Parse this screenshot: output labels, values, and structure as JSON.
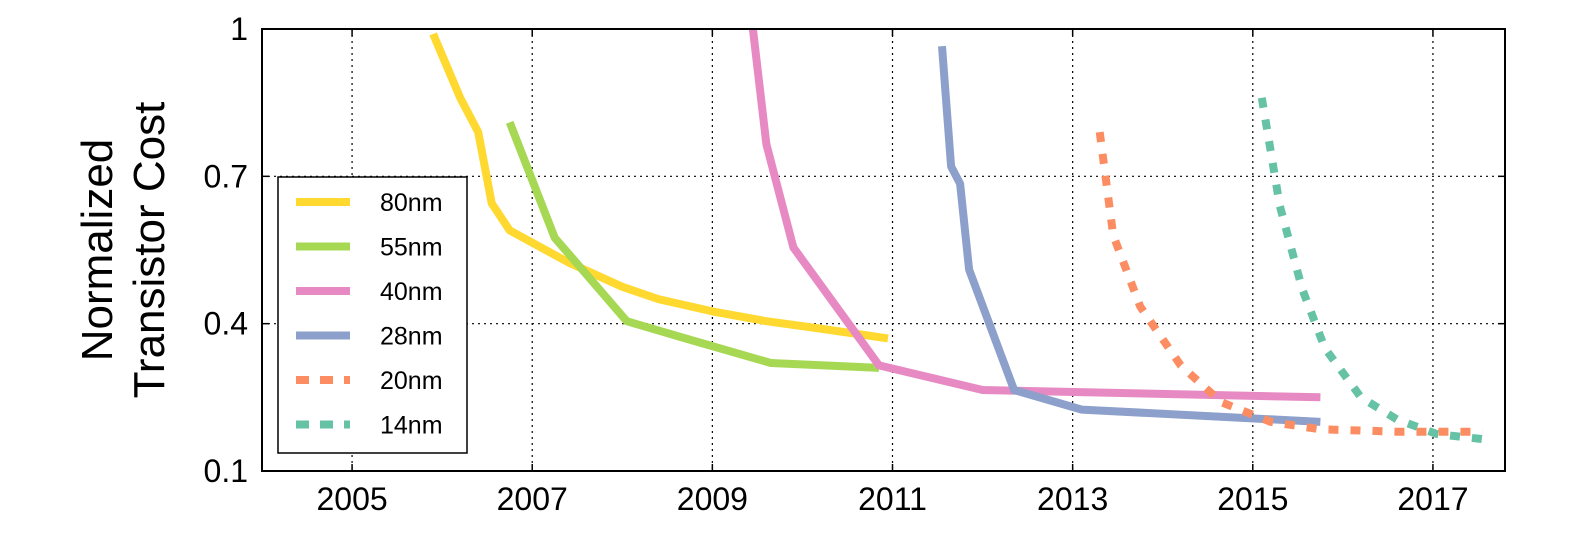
{
  "chart_data": {
    "type": "line",
    "title": "",
    "xlabel": "",
    "ylabel_lines": [
      "Normalized",
      "Transistor Cost"
    ],
    "xlim": [
      2004,
      2017.8
    ],
    "ylim": [
      0.1,
      1.0
    ],
    "x_ticks": [
      2005,
      2007,
      2009,
      2011,
      2013,
      2015,
      2017
    ],
    "x_tick_labels": [
      "2005",
      "2007",
      "2009",
      "2011",
      "2013",
      "2015",
      "2017"
    ],
    "y_ticks": [
      0.1,
      0.4,
      0.7,
      1.0
    ],
    "y_tick_labels": [
      "0.1",
      "0.4",
      "0.7",
      "1"
    ],
    "grid": true,
    "legend_position": "lower-left",
    "series": [
      {
        "name": "80nm",
        "color": "#ffd92f",
        "dashed": false,
        "x": [
          2005.9,
          2006.2,
          2006.4,
          2006.55,
          2006.75,
          2007.4,
          2008.0,
          2008.4,
          2009.0,
          2009.6,
          2010.2,
          2010.95
        ],
        "y": [
          0.99,
          0.86,
          0.79,
          0.645,
          0.59,
          0.525,
          0.475,
          0.45,
          0.425,
          0.405,
          0.39,
          0.37
        ]
      },
      {
        "name": "55nm",
        "color": "#a6d854",
        "dashed": false,
        "x": [
          2006.75,
          2007.25,
          2008.05,
          2008.7,
          2009.65,
          2010.85
        ],
        "y": [
          0.81,
          0.575,
          0.405,
          0.37,
          0.32,
          0.31
        ]
      },
      {
        "name": "40nm",
        "color": "#e78ac3",
        "dashed": false,
        "x": [
          2009.45,
          2009.6,
          2009.9,
          2010.85,
          2012.0,
          2015.75
        ],
        "y": [
          1.0,
          0.765,
          0.555,
          0.315,
          0.265,
          0.25
        ]
      },
      {
        "name": "28nm",
        "color": "#8da0cb",
        "dashed": false,
        "x": [
          2011.55,
          2011.65,
          2011.75,
          2011.85,
          2012.35,
          2013.1,
          2015.75
        ],
        "y": [
          0.965,
          0.72,
          0.685,
          0.51,
          0.265,
          0.225,
          0.2
        ]
      },
      {
        "name": "20nm",
        "color": "#fc8d62",
        "dashed": true,
        "x": [
          2013.3,
          2013.45,
          2013.75,
          2014.2,
          2014.65,
          2015.2,
          2015.75,
          2016.6,
          2017.55
        ],
        "y": [
          0.79,
          0.58,
          0.435,
          0.315,
          0.24,
          0.2,
          0.185,
          0.18,
          0.18
        ]
      },
      {
        "name": "14nm",
        "color": "#66c2a5",
        "dashed": true,
        "x": [
          2015.1,
          2015.3,
          2015.55,
          2015.8,
          2016.2,
          2016.6,
          2017.05,
          2017.55
        ],
        "y": [
          0.86,
          0.64,
          0.47,
          0.35,
          0.25,
          0.205,
          0.175,
          0.165
        ]
      }
    ]
  }
}
